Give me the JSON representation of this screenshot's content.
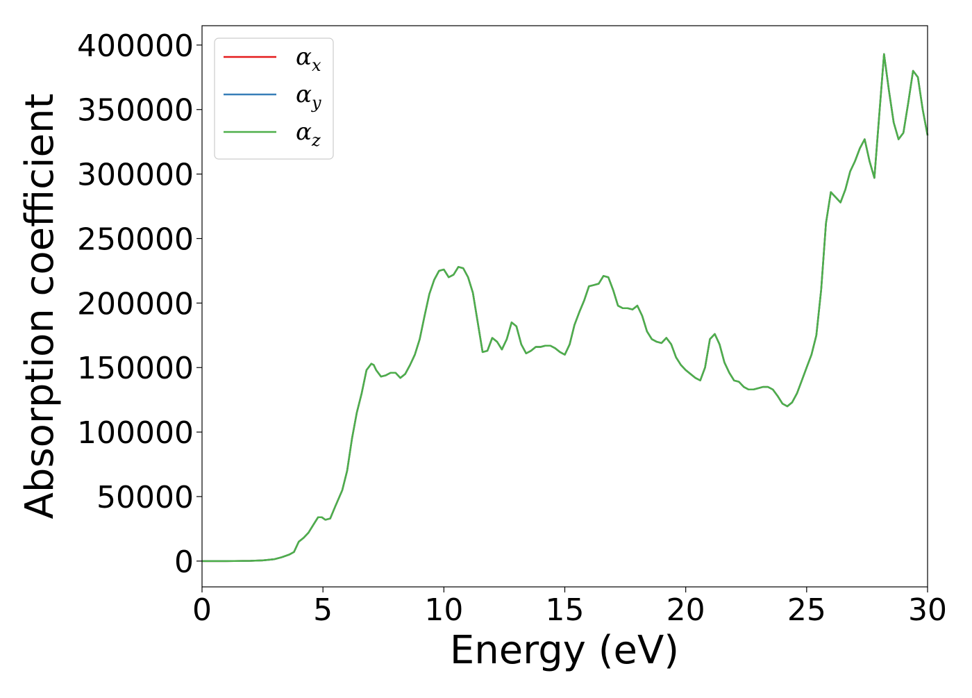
{
  "chart_data": {
    "type": "line",
    "title": "",
    "xlabel": "Energy (eV)",
    "ylabel": "Absorption coefficient",
    "xlim": [
      0,
      30
    ],
    "ylim": [
      -20000,
      415000
    ],
    "xticks": [
      0,
      5,
      10,
      15,
      20,
      25,
      30
    ],
    "yticks": [
      0,
      50000,
      100000,
      150000,
      200000,
      250000,
      300000,
      350000,
      400000
    ],
    "grid": false,
    "legend_position": "upper-left",
    "x": [
      0,
      1,
      2,
      2.5,
      3,
      3.3,
      3.6,
      3.8,
      4.0,
      4.2,
      4.4,
      4.6,
      4.8,
      4.95,
      5.1,
      5.3,
      5.5,
      5.8,
      6.0,
      6.2,
      6.4,
      6.6,
      6.8,
      7.0,
      7.1,
      7.2,
      7.4,
      7.6,
      7.8,
      8.0,
      8.2,
      8.4,
      8.6,
      8.8,
      9.0,
      9.2,
      9.4,
      9.6,
      9.8,
      10.0,
      10.2,
      10.4,
      10.6,
      10.8,
      11.0,
      11.2,
      11.4,
      11.6,
      11.8,
      12.0,
      12.2,
      12.4,
      12.6,
      12.8,
      13.0,
      13.2,
      13.4,
      13.6,
      13.8,
      14.0,
      14.2,
      14.4,
      14.6,
      14.8,
      15.0,
      15.2,
      15.4,
      15.6,
      15.8,
      16.0,
      16.2,
      16.4,
      16.6,
      16.8,
      17.0,
      17.2,
      17.4,
      17.6,
      17.8,
      18.0,
      18.2,
      18.4,
      18.6,
      18.8,
      19.0,
      19.2,
      19.4,
      19.6,
      19.8,
      20.0,
      20.2,
      20.4,
      20.6,
      20.8,
      21.0,
      21.2,
      21.4,
      21.6,
      21.8,
      22.0,
      22.2,
      22.4,
      22.6,
      22.8,
      23.0,
      23.2,
      23.4,
      23.6,
      23.8,
      24.0,
      24.2,
      24.4,
      24.6,
      24.8,
      25.0,
      25.2,
      25.4,
      25.6,
      25.8,
      26.0,
      26.2,
      26.4,
      26.6,
      26.8,
      27.0,
      27.2,
      27.4,
      27.6,
      27.8,
      28.0,
      28.2,
      28.4,
      28.6,
      28.8,
      29.0,
      29.2,
      29.4,
      29.6,
      29.8,
      30.0
    ],
    "series": [
      {
        "name": "α_x",
        "color": "#e41a1c",
        "values": [
          0,
          0,
          200,
          500,
          1500,
          3000,
          5000,
          7000,
          15000,
          18000,
          22000,
          28000,
          34000,
          34000,
          32000,
          33000,
          42000,
          55000,
          70000,
          95000,
          115000,
          130000,
          148000,
          153000,
          152000,
          148000,
          143000,
          144000,
          146000,
          146000,
          142000,
          145000,
          152000,
          160000,
          172000,
          190000,
          207000,
          218000,
          225000,
          226000,
          220000,
          222000,
          228000,
          227000,
          220000,
          208000,
          185000,
          162000,
          163000,
          173000,
          170000,
          164000,
          172000,
          185000,
          182000,
          168000,
          161000,
          163000,
          166000,
          166000,
          167000,
          167000,
          165000,
          162000,
          160000,
          168000,
          183000,
          193000,
          202000,
          213000,
          214000,
          215000,
          221000,
          220000,
          210000,
          198000,
          196000,
          196000,
          195000,
          198000,
          190000,
          178000,
          172000,
          170000,
          169000,
          173000,
          168000,
          158000,
          152000,
          148000,
          145000,
          142000,
          140000,
          150000,
          172000,
          176000,
          168000,
          154000,
          146000,
          140000,
          139000,
          135000,
          133000,
          133000,
          134000,
          135000,
          135000,
          133000,
          128000,
          122000,
          120000,
          123000,
          130000,
          140000,
          150000,
          160000,
          175000,
          210000,
          262000,
          286000,
          282000,
          278000,
          288000,
          302000,
          310000,
          320000,
          327000,
          310000,
          297000,
          345000,
          393000,
          365000,
          340000,
          327000,
          332000,
          355000,
          380000,
          375000,
          350000,
          330000
        ]
      },
      {
        "name": "α_y",
        "color": "#377eb8",
        "values": [
          0,
          0,
          200,
          500,
          1500,
          3000,
          5000,
          7000,
          15000,
          18000,
          22000,
          28000,
          34000,
          34000,
          32000,
          33000,
          42000,
          55000,
          70000,
          95000,
          115000,
          130000,
          148000,
          153000,
          152000,
          148000,
          143000,
          144000,
          146000,
          146000,
          142000,
          145000,
          152000,
          160000,
          172000,
          190000,
          207000,
          218000,
          225000,
          226000,
          220000,
          222000,
          228000,
          227000,
          220000,
          208000,
          185000,
          162000,
          163000,
          173000,
          170000,
          164000,
          172000,
          185000,
          182000,
          168000,
          161000,
          163000,
          166000,
          166000,
          167000,
          167000,
          165000,
          162000,
          160000,
          168000,
          183000,
          193000,
          202000,
          213000,
          214000,
          215000,
          221000,
          220000,
          210000,
          198000,
          196000,
          196000,
          195000,
          198000,
          190000,
          178000,
          172000,
          170000,
          169000,
          173000,
          168000,
          158000,
          152000,
          148000,
          145000,
          142000,
          140000,
          150000,
          172000,
          176000,
          168000,
          154000,
          146000,
          140000,
          139000,
          135000,
          133000,
          133000,
          134000,
          135000,
          135000,
          133000,
          128000,
          122000,
          120000,
          123000,
          130000,
          140000,
          150000,
          160000,
          175000,
          210000,
          262000,
          286000,
          282000,
          278000,
          288000,
          302000,
          310000,
          320000,
          327000,
          310000,
          297000,
          345000,
          393000,
          365000,
          340000,
          327000,
          332000,
          355000,
          380000,
          375000,
          350000,
          330000
        ]
      },
      {
        "name": "α_z",
        "color": "#4daf4a",
        "values": [
          0,
          0,
          200,
          500,
          1500,
          3000,
          5000,
          7000,
          15000,
          18000,
          22000,
          28000,
          34000,
          34000,
          32000,
          33000,
          42000,
          55000,
          70000,
          95000,
          115000,
          130000,
          148000,
          153000,
          152000,
          148000,
          143000,
          144000,
          146000,
          146000,
          142000,
          145000,
          152000,
          160000,
          172000,
          190000,
          207000,
          218000,
          225000,
          226000,
          220000,
          222000,
          228000,
          227000,
          220000,
          208000,
          185000,
          162000,
          163000,
          173000,
          170000,
          164000,
          172000,
          185000,
          182000,
          168000,
          161000,
          163000,
          166000,
          166000,
          167000,
          167000,
          165000,
          162000,
          160000,
          168000,
          183000,
          193000,
          202000,
          213000,
          214000,
          215000,
          221000,
          220000,
          210000,
          198000,
          196000,
          196000,
          195000,
          198000,
          190000,
          178000,
          172000,
          170000,
          169000,
          173000,
          168000,
          158000,
          152000,
          148000,
          145000,
          142000,
          140000,
          150000,
          172000,
          176000,
          168000,
          154000,
          146000,
          140000,
          139000,
          135000,
          133000,
          133000,
          134000,
          135000,
          135000,
          133000,
          128000,
          122000,
          120000,
          123000,
          130000,
          140000,
          150000,
          160000,
          175000,
          210000,
          262000,
          286000,
          282000,
          278000,
          288000,
          302000,
          310000,
          320000,
          327000,
          310000,
          297000,
          345000,
          393000,
          365000,
          340000,
          327000,
          332000,
          355000,
          380000,
          375000,
          350000,
          330000
        ]
      }
    ]
  }
}
